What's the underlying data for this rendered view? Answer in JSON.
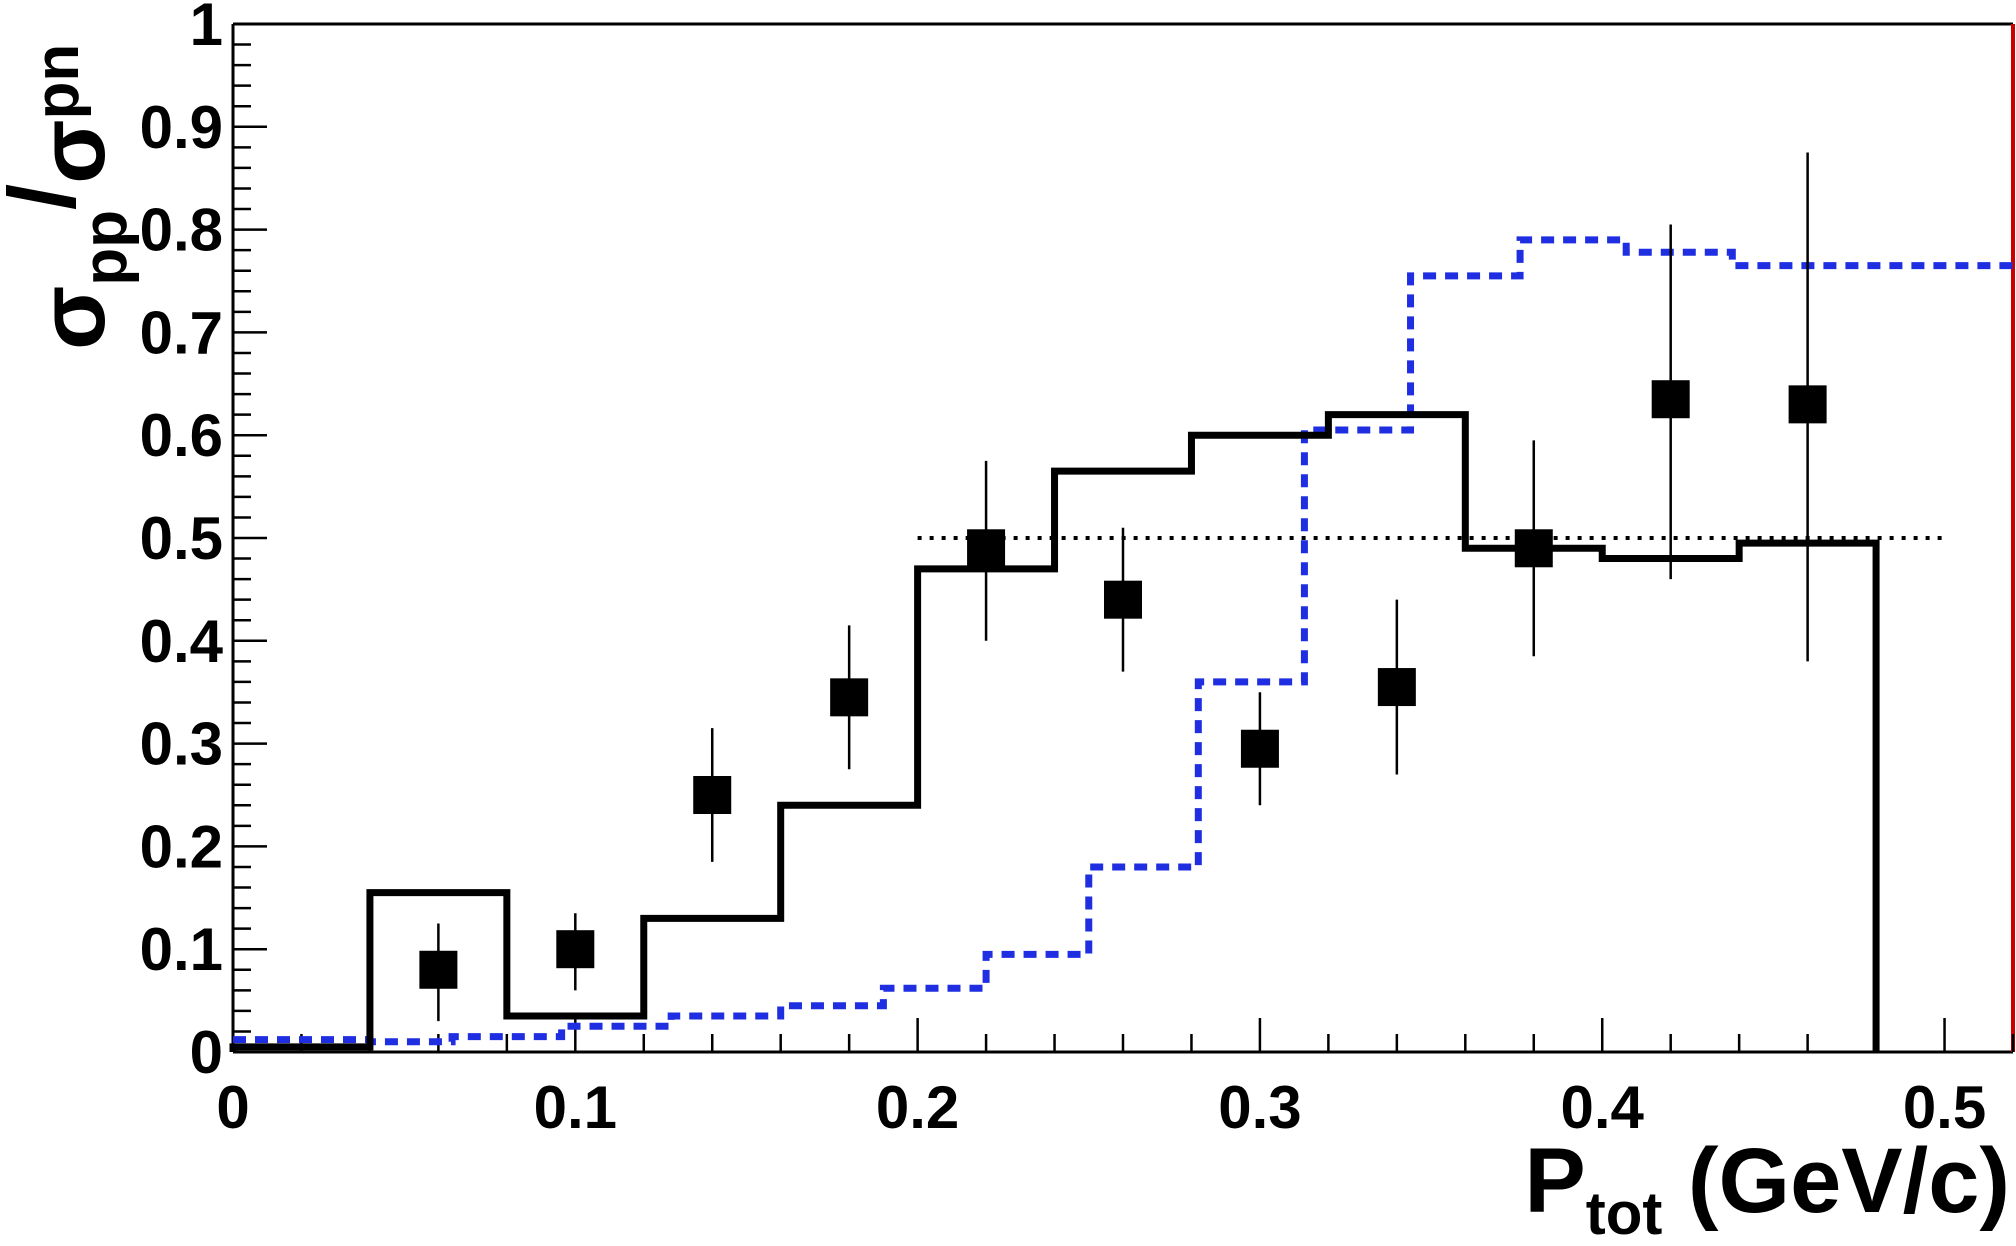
{
  "chart_data": {
    "type": "scatter",
    "xlabel": {
      "main": "P",
      "sub": "tot",
      "unit": " (GeV/c)"
    },
    "ylabel": {
      "num": "σ",
      "num_sub": "pp",
      "slash": "/",
      "den": "σ",
      "den_sub": "pn"
    },
    "xlim": [
      0,
      0.52
    ],
    "ylim": [
      0,
      1
    ],
    "x_ticks": [
      0,
      0.1,
      0.2,
      0.3,
      0.4,
      0.5
    ],
    "x_tick_labels": [
      "0",
      "0.1",
      "0.2",
      "0.3",
      "0.4",
      "0.5"
    ],
    "y_ticks": [
      0,
      0.1,
      0.2,
      0.3,
      0.4,
      0.5,
      0.6,
      0.7,
      0.8,
      0.9,
      1
    ],
    "y_tick_labels": [
      "0",
      "0.1",
      "0.2",
      "0.3",
      "0.4",
      "0.5",
      "0.6",
      "0.7",
      "0.8",
      "0.9",
      "1"
    ],
    "grid": false,
    "legend": "none",
    "colors": {
      "data": "#000000",
      "black_hist": "#000000",
      "blue_hist": "#1f2ee0",
      "reference": "#000000",
      "right_frame": "#cc0000"
    },
    "data_points": {
      "x": [
        0.06,
        0.1,
        0.14,
        0.18,
        0.22,
        0.26,
        0.3,
        0.34,
        0.38,
        0.42,
        0.46
      ],
      "y": [
        0.08,
        0.1,
        0.25,
        0.345,
        0.49,
        0.44,
        0.295,
        0.355,
        0.49,
        0.635,
        0.63
      ],
      "y_low": [
        0.03,
        0.06,
        0.185,
        0.275,
        0.4,
        0.37,
        0.24,
        0.27,
        0.385,
        0.46,
        0.38
      ],
      "y_high": [
        0.125,
        0.135,
        0.315,
        0.415,
        0.575,
        0.51,
        0.35,
        0.44,
        0.595,
        0.805,
        0.875
      ]
    },
    "black_histogram": {
      "edges": [
        0,
        0.04,
        0.08,
        0.12,
        0.16,
        0.2,
        0.24,
        0.28,
        0.32,
        0.36,
        0.4,
        0.44,
        0.48
      ],
      "values": [
        0.005,
        0.155,
        0.035,
        0.13,
        0.24,
        0.47,
        0.565,
        0.6,
        0.62,
        0.49,
        0.48,
        0.495
      ]
    },
    "blue_histogram": {
      "edges": [
        0,
        0.04,
        0.064,
        0.096,
        0.128,
        0.16,
        0.19,
        0.22,
        0.25,
        0.282,
        0.313,
        0.344,
        0.376,
        0.407,
        0.438,
        0.52
      ],
      "values": [
        0.012,
        0.01,
        0.015,
        0.025,
        0.035,
        0.045,
        0.062,
        0.095,
        0.18,
        0.36,
        0.605,
        0.755,
        0.79,
        0.778,
        0.765
      ]
    },
    "reference_line": {
      "y": 0.5,
      "x_from": 0.2,
      "x_to": 0.5
    }
  }
}
